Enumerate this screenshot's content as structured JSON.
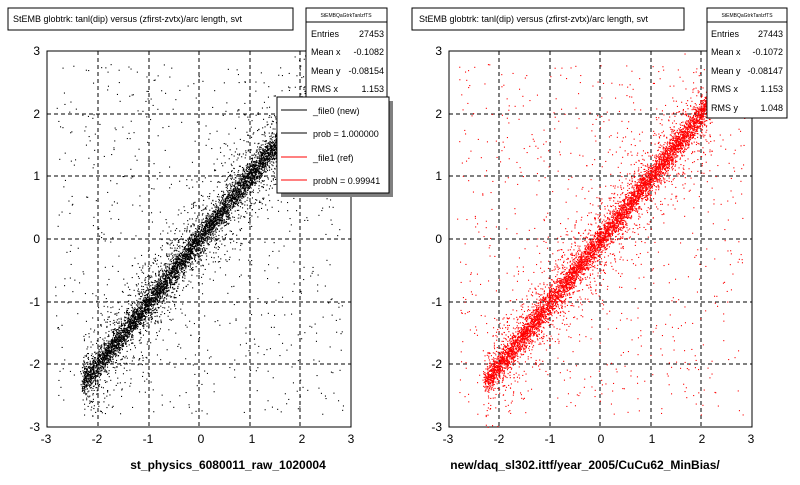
{
  "chart_data": [
    {
      "type": "scatter",
      "title": "StEMB globtrk: tanl(dip) versus (zfirst-zvtx)/arc length, svt",
      "xlabel": "st_physics_6080011_raw_1020004",
      "ylabel": "",
      "xlim": [
        -3,
        3
      ],
      "ylim": [
        -3,
        3
      ],
      "x_ticks": [
        "-3",
        "-2",
        "-1",
        "0",
        "1",
        "2",
        "3"
      ],
      "y_ticks": [
        "-3",
        "-2",
        "-1",
        "0",
        "1",
        "2",
        "3"
      ],
      "grid": true,
      "marker_color": "#000000",
      "distribution": {
        "relation": "y ≈ x (dense diagonal band)",
        "band_x_range": [
          -2.3,
          2.2
        ],
        "band_y_at_x_min": -2.3,
        "band_y_at_x_max": 2.2
      },
      "stats_box": {
        "title": "StEMBQaGtrkTanlzfTS",
        "rows": [
          {
            "label": "Entries",
            "value": "27453"
          },
          {
            "label": "Mean x",
            "value": "-0.1082"
          },
          {
            "label": "Mean y",
            "value": "-0.08154"
          },
          {
            "label": "RMS x",
            "value": "1.153"
          }
        ]
      },
      "legend": {
        "placement": "top-right",
        "entries": [
          {
            "label": "_file0 (new)",
            "color": "#000000"
          },
          {
            "label": "prob = 1.000000",
            "color": "#000000"
          },
          {
            "label": "_file1 (ref)",
            "color": "#ff0000"
          },
          {
            "label": "probN = 0.99941",
            "color": "#ff0000"
          }
        ]
      }
    },
    {
      "type": "scatter",
      "title": "StEMB globtrk: tanl(dip) versus (zfirst-zvtx)/arc length, svt",
      "xlabel": "new/daq_sl302.ittf/year_2005/CuCu62_MinBias/",
      "ylabel": "",
      "xlim": [
        -3,
        3
      ],
      "ylim": [
        -3,
        3
      ],
      "x_ticks": [
        "-3",
        "-2",
        "-1",
        "0",
        "1",
        "2",
        "3"
      ],
      "y_ticks": [
        "-3",
        "-2",
        "-1",
        "0",
        "1",
        "2",
        "3"
      ],
      "grid": true,
      "marker_color": "#ff0000",
      "distribution": {
        "relation": "y ≈ x (dense diagonal band)",
        "band_x_range": [
          -2.3,
          2.2
        ],
        "band_y_at_x_min": -2.3,
        "band_y_at_x_max": 2.2
      },
      "stats_box": {
        "title": "StEMBQaGtrkTanlzfTS",
        "rows": [
          {
            "label": "Entries",
            "value": "27443"
          },
          {
            "label": "Mean x",
            "value": "-0.1072"
          },
          {
            "label": "Mean y",
            "value": "-0.08147"
          },
          {
            "label": "RMS x",
            "value": "1.153"
          },
          {
            "label": "RMS y",
            "value": "1.048"
          }
        ]
      }
    }
  ]
}
